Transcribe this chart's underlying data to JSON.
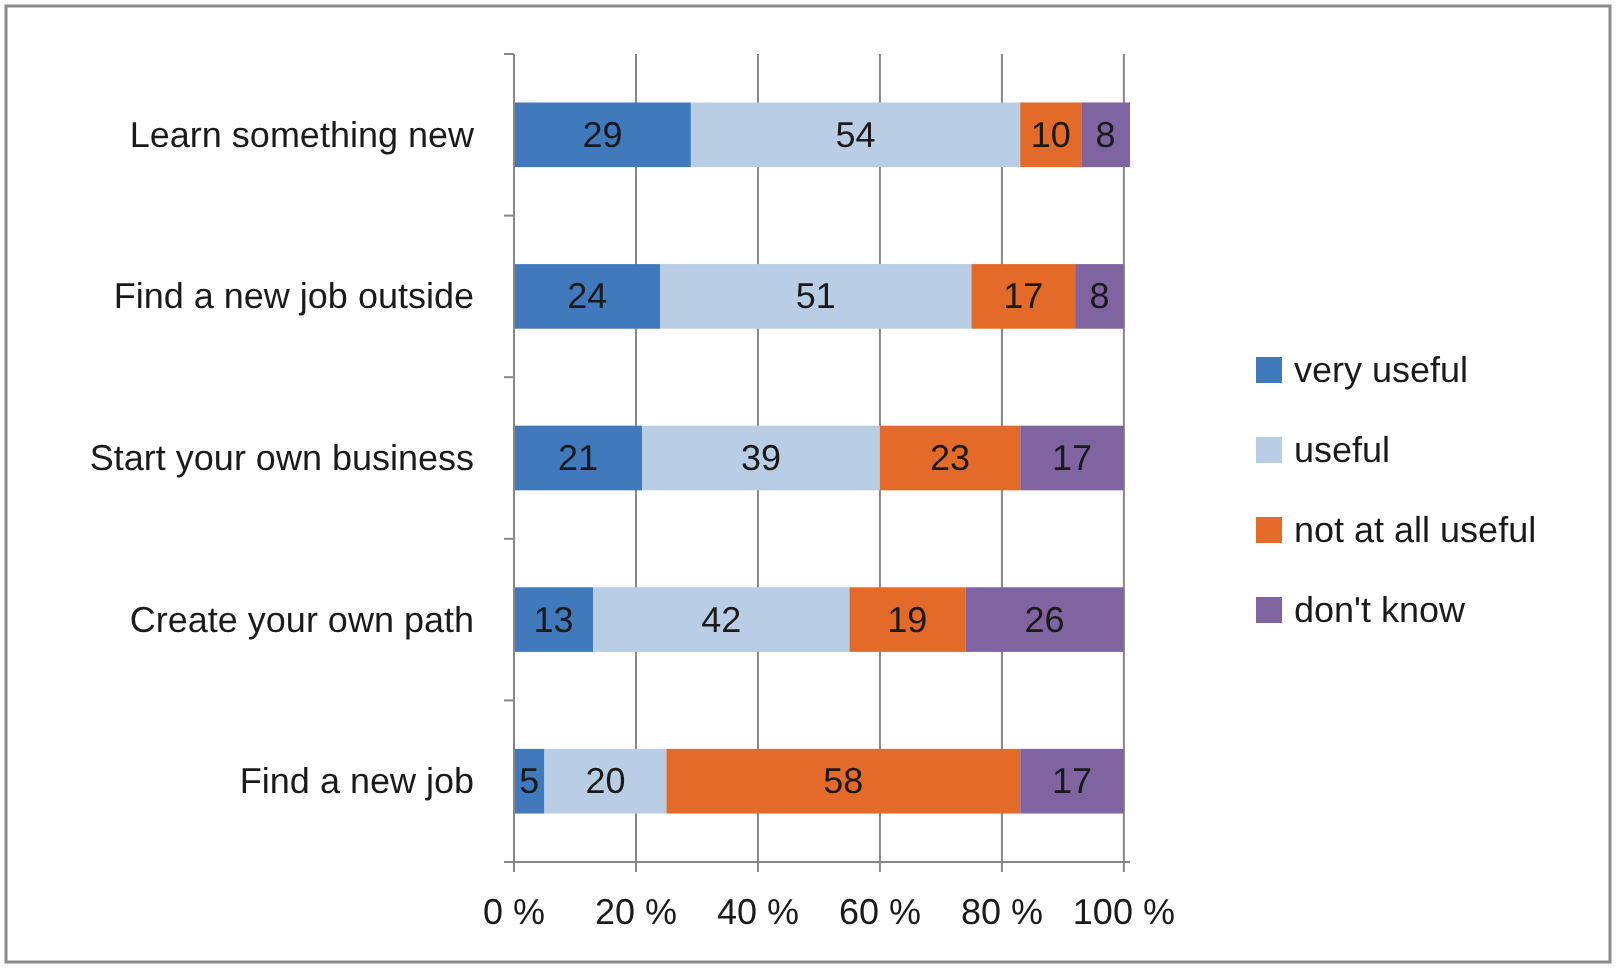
{
  "chart_data": {
    "type": "bar",
    "orientation": "horizontal",
    "stacked": true,
    "categories": [
      "Learn something new",
      "Find a new job outside",
      "Start your own business",
      "Create your own path",
      "Find a new job"
    ],
    "series": [
      {
        "name": "very useful",
        "color": "#4179bd",
        "values": [
          29,
          24,
          21,
          13,
          5
        ]
      },
      {
        "name": "useful",
        "color": "#b9cde5",
        "values": [
          54,
          51,
          39,
          42,
          20
        ]
      },
      {
        "name": "not at all useful",
        "color": "#e36a28",
        "values": [
          10,
          17,
          23,
          19,
          58
        ]
      },
      {
        "name": "don't know",
        "color": "#8064a2",
        "values": [
          8,
          8,
          17,
          26,
          17
        ]
      }
    ],
    "xlim": [
      0,
      101
    ],
    "xticks": [
      {
        "value": 0,
        "label": "0 %"
      },
      {
        "value": 20,
        "label": "20 %"
      },
      {
        "value": 40,
        "label": "40 %"
      },
      {
        "value": 60,
        "label": "60 %"
      },
      {
        "value": 80,
        "label": "80 %"
      },
      {
        "value": 100,
        "label": "100 %"
      }
    ],
    "grid": "x",
    "legend": "right",
    "data_labels": true
  }
}
